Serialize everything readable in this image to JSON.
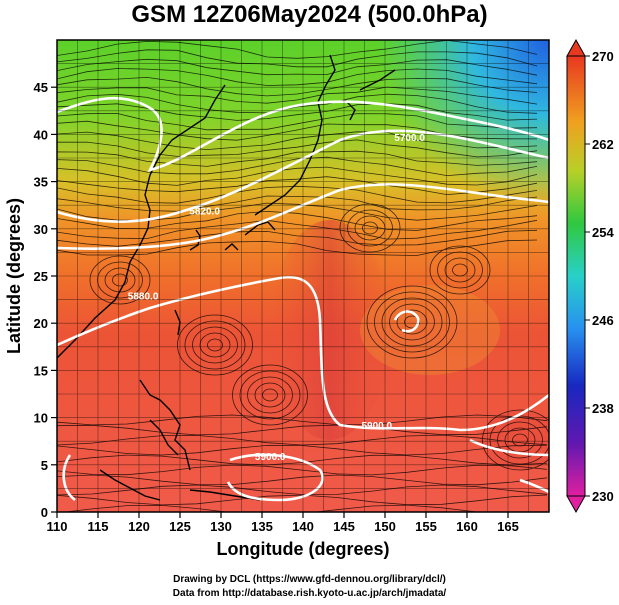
{
  "title": "GSM 12Z06May2024 (500.0hPa)",
  "map": {
    "x_axis": {
      "label": "Longitude (degrees)",
      "range": [
        110,
        170
      ],
      "ticks": [
        "110",
        "115",
        "120",
        "125",
        "130",
        "135",
        "140",
        "145",
        "150",
        "155",
        "160",
        "165"
      ],
      "tick_values": [
        110,
        115,
        120,
        125,
        130,
        135,
        140,
        145,
        150,
        155,
        160,
        165
      ]
    },
    "y_axis": {
      "label": "Latitude (degrees)",
      "range": [
        0,
        50
      ],
      "ticks": [
        "0",
        "5",
        "10",
        "15",
        "20",
        "25",
        "30",
        "35",
        "40",
        "45"
      ],
      "tick_values": [
        0,
        5,
        10,
        15,
        20,
        25,
        30,
        35,
        40,
        45
      ]
    },
    "grid": true,
    "field": "temperature (K), colored",
    "contour_labels": [
      {
        "text": "5700.0",
        "lon": 153,
        "lat": 39.3
      },
      {
        "text": "5820.0",
        "lon": 128,
        "lat": 31.5
      },
      {
        "text": "5880.0",
        "lon": 120.5,
        "lat": 22.5
      },
      {
        "text": "5900.0",
        "lon": 149,
        "lat": 8.8
      },
      {
        "text": "5900.0",
        "lon": 136,
        "lat": 5.5
      }
    ]
  },
  "colorbar": {
    "ticks": [
      "270",
      "262",
      "254",
      "246",
      "238",
      "230"
    ],
    "tick_values": [
      270,
      262,
      254,
      246,
      238,
      230
    ],
    "range": [
      230,
      270
    ],
    "colors": [
      "#e0208a",
      "#1818c0",
      "#2ea8f0",
      "#28c878",
      "#3ec82a",
      "#f0b020",
      "#f08020",
      "#e84020"
    ]
  },
  "credits": {
    "line1": "Drawing by DCL (https://www.gfd-dennou.org/library/dcl/)",
    "line2": "Data from http://database.rish.kyoto-u.ac.jp/arch/jmadata/"
  }
}
